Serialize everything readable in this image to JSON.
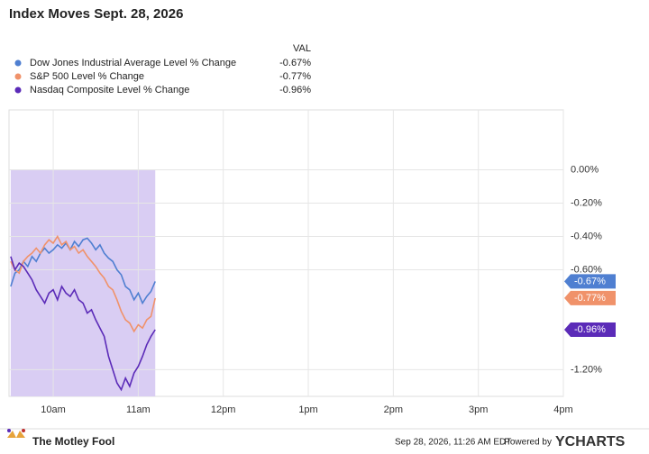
{
  "chart_data": {
    "type": "line",
    "title": "Index Moves Sept. 28, 2026",
    "legend_header": "VAL",
    "x": [
      9.5,
      9.55,
      9.6,
      9.65,
      9.7,
      9.75,
      9.8,
      9.85,
      9.9,
      9.95,
      10,
      10.05,
      10.1,
      10.15,
      10.2,
      10.25,
      10.3,
      10.35,
      10.4,
      10.45,
      10.5,
      10.55,
      10.6,
      10.65,
      10.7,
      10.75,
      10.8,
      10.85,
      10.9,
      10.95,
      11,
      11.05,
      11.1,
      11.15,
      11.2
    ],
    "series": [
      {
        "name": "Dow Jones Industrial Average Level % Change",
        "color": "#4f7fd1",
        "last": {
          "value": -0.67,
          "label": "-0.67%"
        },
        "values": [
          -0.7,
          -0.62,
          -0.6,
          -0.55,
          -0.58,
          -0.52,
          -0.55,
          -0.5,
          -0.47,
          -0.5,
          -0.48,
          -0.45,
          -0.47,
          -0.44,
          -0.48,
          -0.43,
          -0.46,
          -0.42,
          -0.41,
          -0.44,
          -0.48,
          -0.45,
          -0.5,
          -0.53,
          -0.55,
          -0.6,
          -0.63,
          -0.7,
          -0.72,
          -0.78,
          -0.74,
          -0.8,
          -0.76,
          -0.73,
          -0.67
        ]
      },
      {
        "name": "S&P 500 Level % Change",
        "color": "#f0926a",
        "last": {
          "value": -0.77,
          "label": "-0.77%"
        },
        "values": [
          -0.55,
          -0.6,
          -0.62,
          -0.55,
          -0.52,
          -0.5,
          -0.47,
          -0.5,
          -0.45,
          -0.42,
          -0.44,
          -0.4,
          -0.45,
          -0.43,
          -0.48,
          -0.46,
          -0.5,
          -0.48,
          -0.52,
          -0.55,
          -0.58,
          -0.62,
          -0.65,
          -0.7,
          -0.72,
          -0.78,
          -0.85,
          -0.9,
          -0.92,
          -0.97,
          -0.93,
          -0.95,
          -0.9,
          -0.88,
          -0.77
        ]
      },
      {
        "name": "Nasdaq Composite Level % Change",
        "color": "#5b2bb8",
        "last": {
          "value": -0.96,
          "label": "-0.96%"
        },
        "values": [
          -0.52,
          -0.6,
          -0.56,
          -0.58,
          -0.62,
          -0.66,
          -0.72,
          -0.76,
          -0.8,
          -0.74,
          -0.72,
          -0.78,
          -0.7,
          -0.74,
          -0.76,
          -0.72,
          -0.78,
          -0.8,
          -0.86,
          -0.84,
          -0.9,
          -0.95,
          -1.0,
          -1.12,
          -1.2,
          -1.28,
          -1.32,
          -1.25,
          -1.3,
          -1.22,
          -1.18,
          -1.12,
          -1.05,
          -1.0,
          -0.96
        ]
      }
    ],
    "xlim": [
      9.48,
      16
    ],
    "xticks": [
      {
        "value": 10,
        "label": "10am"
      },
      {
        "value": 11,
        "label": "11am"
      },
      {
        "value": 12,
        "label": "12pm"
      },
      {
        "value": 13,
        "label": "1pm"
      },
      {
        "value": 14,
        "label": "2pm"
      },
      {
        "value": 15,
        "label": "3pm"
      },
      {
        "value": 16,
        "label": "4pm"
      }
    ],
    "ylim": [
      -1.36,
      0.36
    ],
    "yticks": [
      {
        "value": 0,
        "label": "0.00%"
      },
      {
        "value": -0.2,
        "label": "-0.20%"
      },
      {
        "value": -0.4,
        "label": "-0.40%"
      },
      {
        "value": -0.6,
        "label": "-0.60%"
      },
      {
        "value": -1.2,
        "label": "-1.20%"
      }
    ],
    "grid": true,
    "session_shading": "#d9cdf3"
  },
  "footer": {
    "logo": "The Motley Fool",
    "timestamp": "Sep 28, 2026, 11:26 AM EDT",
    "powered_by": "Powered by",
    "brand": "YCHARTS"
  }
}
